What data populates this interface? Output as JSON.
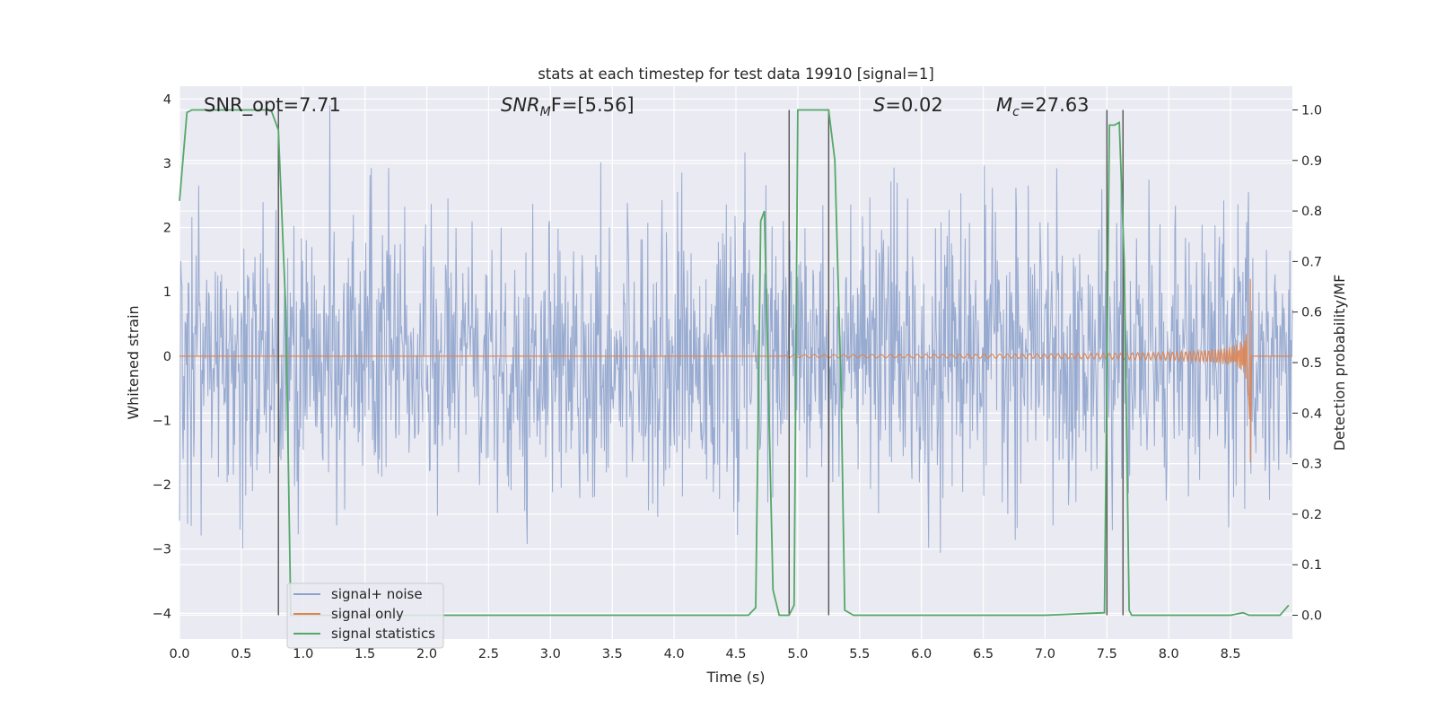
{
  "chart_data": {
    "type": "line",
    "title": "stats at each timestep for test data 19910 [signal=1]",
    "xlabel": "Time (s)",
    "ylabel": "Whitened strain",
    "y2label": "Detection probability/MF",
    "xlim": [
      0.0,
      9.0
    ],
    "ylim": [
      -4.4,
      4.2
    ],
    "y2lim": [
      -0.047,
      1.047
    ],
    "x_ticks": [
      0.0,
      0.5,
      1.0,
      1.5,
      2.0,
      2.5,
      3.0,
      3.5,
      4.0,
      4.5,
      5.0,
      5.5,
      6.0,
      6.5,
      7.0,
      7.5,
      8.0,
      8.5
    ],
    "x_tick_labels": [
      "0.0",
      "0.5",
      "1.0",
      "1.5",
      "2.0",
      "2.5",
      "3.0",
      "3.5",
      "4.0",
      "4.5",
      "5.0",
      "5.5",
      "6.0",
      "6.5",
      "7.0",
      "7.5",
      "8.0",
      "8.5"
    ],
    "y_ticks": [
      4,
      3,
      2,
      1,
      0,
      -1,
      -2,
      -3,
      -4
    ],
    "y_tick_labels": [
      "4",
      "3",
      "2",
      "1",
      "0",
      "−1",
      "−2",
      "−3",
      "−4"
    ],
    "y2_ticks": [
      1.0,
      0.9,
      0.8,
      0.7,
      0.6,
      0.5,
      0.4,
      0.3,
      0.2,
      0.1,
      0.0
    ],
    "y2_tick_labels": [
      "1.0",
      "0.9",
      "0.8",
      "0.7",
      "0.6",
      "0.5",
      "0.4",
      "0.3",
      "0.2",
      "0.1",
      "0.0"
    ],
    "grid": true,
    "legend_position": "lower-left",
    "colors": {
      "plot_background": "#eaeaf2",
      "grid": "#ffffff",
      "noise": "#8ea3cc",
      "signal": "#dd8452",
      "statistics": "#55a868",
      "marker_lines": "#555555"
    },
    "annotations": [
      {
        "plain": "SNR_opt=7.71"
      },
      {
        "base": "SNR",
        "sub": "M",
        "rest": "F=[5.56]"
      },
      {
        "italic": "S",
        "rest": "=0.02"
      },
      {
        "base": "M",
        "sub": "c",
        "rest": "=27.63"
      }
    ],
    "legend": [
      {
        "label": "signal+ noise",
        "series": "noise"
      },
      {
        "label": "signal only",
        "series": "signal"
      },
      {
        "label": "signal statistics",
        "series": "statistics"
      }
    ],
    "series": [
      {
        "name": "signal+ noise",
        "axis": "left",
        "description_kind": "whitened noise, approximate",
        "duration": 9.0,
        "std": 1.0
      },
      {
        "name": "signal only",
        "axis": "left",
        "chirp_start": 4.9,
        "merger_time": 8.66,
        "peak_amplitude": 1.75
      },
      {
        "name": "signal statistics",
        "axis": "right",
        "x": [
          0.0,
          0.06,
          0.1,
          0.2,
          0.4,
          0.6,
          0.74,
          0.8,
          0.86,
          0.9,
          1.0,
          2.0,
          3.0,
          4.0,
          4.5,
          4.6,
          4.66,
          4.7,
          4.73,
          4.8,
          4.85,
          4.93,
          4.97,
          5.0,
          5.1,
          5.2,
          5.25,
          5.3,
          5.35,
          5.38,
          5.45,
          5.6,
          6.0,
          7.0,
          7.48,
          7.52,
          7.56,
          7.6,
          7.64,
          7.68,
          7.7,
          7.8,
          8.0,
          8.5,
          8.6,
          8.65,
          8.7,
          8.8,
          8.9,
          8.97
        ],
        "y": [
          0.82,
          0.995,
          1.0,
          1.0,
          1.0,
          1.0,
          1.0,
          0.96,
          0.6,
          0.0,
          0.0,
          0.0,
          0.0,
          0.0,
          0.0,
          0.0,
          0.015,
          0.78,
          0.8,
          0.05,
          0.0,
          0.0,
          0.02,
          1.0,
          1.0,
          1.0,
          1.0,
          0.9,
          0.45,
          0.01,
          0.0,
          0.0,
          0.0,
          0.0,
          0.005,
          0.97,
          0.97,
          0.975,
          0.7,
          0.01,
          0.0,
          0.0,
          0.0,
          0.0,
          0.005,
          0.0,
          0.0,
          0.0,
          0.0,
          0.02
        ]
      }
    ],
    "marker_lines_x": [
      0.8,
      4.93,
      5.25,
      7.5,
      7.63
    ]
  }
}
